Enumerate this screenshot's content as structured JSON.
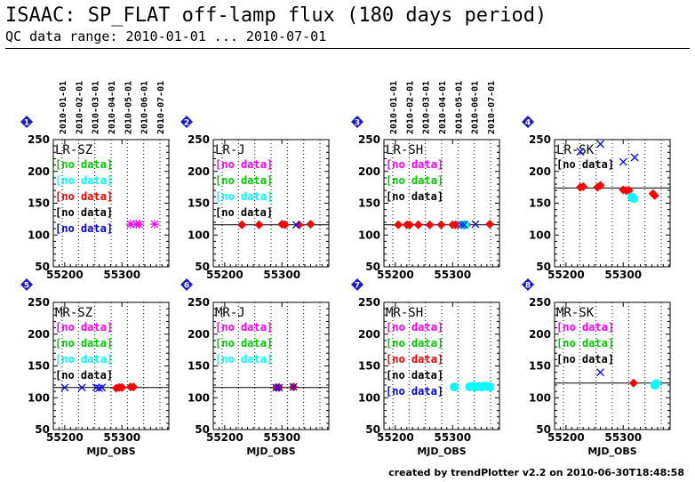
{
  "header": {
    "title": "ISAAC: SP_FLAT off-lamp flux (180 days period)",
    "subtitle": "QC data range: 2010-01-01 ... 2010-07-01"
  },
  "footer": {
    "credit": "created by trendPlotter v2.2 on 2010-06-30T18:48:58"
  },
  "colors": {
    "magenta": "#ff00ff",
    "green": "#00cc00",
    "cyan": "#00ffff",
    "red": "#ff0000",
    "black": "#000000",
    "blue": "#0000ff",
    "badge": "#1a1acc"
  },
  "chart_data": [
    {
      "id": 1,
      "type": "scatter",
      "label": "LR-SZ",
      "xlabel": "",
      "ylim": [
        50,
        250
      ],
      "xlim": [
        55180,
        55382
      ],
      "xticks": [
        55200,
        55300
      ],
      "yticks": [
        50,
        100,
        150,
        200,
        250
      ],
      "date_ticks": [
        "2010-01-01",
        "2010-02-01",
        "2010-03-01",
        "2010-04-01",
        "2010-05-01",
        "2010-06-01",
        "2010-07-01"
      ],
      "legend": [
        {
          "text": "[no data]",
          "color": "#00cc00"
        },
        {
          "text": "[no data]",
          "color": "#00ffff"
        },
        {
          "text": "[no data]",
          "color": "#ff0000"
        },
        {
          "text": "[no data]",
          "color": "#000000"
        },
        {
          "text": "[no data]",
          "color": "#0000ff"
        }
      ],
      "ref_line": null,
      "series": [
        {
          "color": "#ff00ff",
          "marker": "star",
          "x": [
            55315,
            55325,
            55330,
            55357
          ],
          "y": [
            117,
            117,
            117,
            117
          ]
        }
      ]
    },
    {
      "id": 2,
      "type": "scatter",
      "label": "LR-J",
      "xlabel": "",
      "ylim": [
        50,
        250
      ],
      "xlim": [
        55180,
        55382
      ],
      "xticks": [
        55200,
        55300
      ],
      "yticks": [
        50,
        100,
        150,
        200,
        250
      ],
      "date_ticks": [],
      "legend": [
        {
          "text": "[no data]",
          "color": "#ff00ff"
        },
        {
          "text": "[no data]",
          "color": "#00cc00"
        },
        {
          "text": "[no data]",
          "color": "#00ffff"
        },
        {
          "text": "[no data]",
          "color": "#000000"
        }
      ],
      "ref_line": 116,
      "series": [
        {
          "color": "#ff0000",
          "marker": "diamond",
          "x": [
            55230,
            55260,
            55300,
            55305,
            55330,
            55350
          ],
          "y": [
            116,
            116,
            117,
            116,
            116,
            117
          ]
        },
        {
          "color": "#0000ff",
          "marker": "x",
          "x": [
            55325
          ],
          "y": [
            116
          ]
        }
      ]
    },
    {
      "id": 3,
      "type": "scatter",
      "label": "LR-SH",
      "xlabel": "",
      "ylim": [
        50,
        250
      ],
      "xlim": [
        55180,
        55382
      ],
      "xticks": [
        55200,
        55300
      ],
      "yticks": [
        50,
        100,
        150,
        200,
        250
      ],
      "date_ticks": [
        "2010-01-01",
        "2010-02-01",
        "2010-03-01",
        "2010-04-01",
        "2010-05-01",
        "2010-06-01",
        "2010-07-01"
      ],
      "legend": [
        {
          "text": "[no data]",
          "color": "#ff00ff"
        },
        {
          "text": "[no data]",
          "color": "#00cc00"
        },
        {
          "text": "[no data]",
          "color": "#000000"
        }
      ],
      "ref_line": 116,
      "series": [
        {
          "color": "#ff0000",
          "marker": "diamond",
          "x": [
            55205,
            55220,
            55225,
            55240,
            55260,
            55280,
            55300,
            55305,
            55325,
            55365
          ],
          "y": [
            116,
            116,
            116,
            116,
            116,
            116,
            116,
            116,
            116,
            117
          ]
        },
        {
          "color": "#00ffff",
          "marker": "circle",
          "x": [
            55318,
            55322
          ],
          "y": [
            116,
            116
          ]
        },
        {
          "color": "#0000ff",
          "marker": "x",
          "x": [
            55315,
            55320,
            55340
          ],
          "y": [
            116,
            116,
            117
          ]
        }
      ]
    },
    {
      "id": 4,
      "type": "scatter",
      "label": "LR-SK",
      "xlabel": "",
      "ylim": [
        50,
        250
      ],
      "xlim": [
        55180,
        55382
      ],
      "xticks": [
        55200,
        55300
      ],
      "yticks": [
        50,
        100,
        150,
        200,
        250
      ],
      "date_ticks": [],
      "legend": [
        {
          "text": "[no data]",
          "color": "#000000"
        }
      ],
      "ref_line": 174,
      "series": [
        {
          "color": "#ff0000",
          "marker": "diamond",
          "x": [
            55225,
            55230,
            55255,
            55260,
            55300,
            55305,
            55310,
            55352,
            55355
          ],
          "y": [
            175,
            176,
            175,
            178,
            171,
            170,
            170,
            165,
            162
          ]
        },
        {
          "color": "#00ffff",
          "marker": "circle",
          "x": [
            55315,
            55318
          ],
          "y": [
            160,
            157
          ]
        },
        {
          "color": "#0000ff",
          "marker": "x",
          "x": [
            55225,
            55260,
            55300,
            55320
          ],
          "y": [
            231,
            243,
            215,
            222
          ]
        }
      ]
    },
    {
      "id": 5,
      "type": "scatter",
      "label": "MR-SZ",
      "xlabel": "MJD_OBS",
      "ylim": [
        50,
        250
      ],
      "xlim": [
        55180,
        55382
      ],
      "xticks": [
        55200,
        55300
      ],
      "yticks": [
        50,
        100,
        150,
        200,
        250
      ],
      "date_ticks": [],
      "legend": [
        {
          "text": "[no data]",
          "color": "#ff00ff"
        },
        {
          "text": "[no data]",
          "color": "#00cc00"
        },
        {
          "text": "[no data]",
          "color": "#00ffff"
        },
        {
          "text": "[no data]",
          "color": "#000000"
        }
      ],
      "ref_line": 116,
      "series": [
        {
          "color": "#0000ff",
          "marker": "x",
          "x": [
            55200,
            55230,
            55255,
            55260,
            55265
          ],
          "y": [
            116,
            116,
            116,
            115,
            116
          ]
        },
        {
          "color": "#ff0000",
          "marker": "diamond",
          "x": [
            55290,
            55295,
            55300,
            55315,
            55320
          ],
          "y": [
            115,
            116,
            116,
            117,
            117
          ]
        }
      ]
    },
    {
      "id": 6,
      "type": "scatter",
      "label": "MR-J",
      "xlabel": "MJD_OBS",
      "ylim": [
        50,
        250
      ],
      "xlim": [
        55180,
        55382
      ],
      "xticks": [
        55200,
        55300
      ],
      "yticks": [
        50,
        100,
        150,
        200,
        250
      ],
      "date_ticks": [],
      "legend": [
        {
          "text": "[no data]",
          "color": "#ff00ff"
        },
        {
          "text": "[no data]",
          "color": "#00cc00"
        },
        {
          "text": "[no data]",
          "color": "#00ffff"
        }
      ],
      "ref_line": 116,
      "series": [
        {
          "color": "#ff0000",
          "marker": "diamond",
          "x": [
            55290,
            55295,
            55320
          ],
          "y": [
            116,
            116,
            117
          ]
        },
        {
          "color": "#0000ff",
          "marker": "x",
          "x": [
            55290,
            55295,
            55320
          ],
          "y": [
            116,
            116,
            117
          ]
        }
      ]
    },
    {
      "id": 7,
      "type": "scatter",
      "label": "MR-SH",
      "xlabel": "MJD_OBS",
      "ylim": [
        50,
        250
      ],
      "xlim": [
        55180,
        55382
      ],
      "xticks": [
        55200,
        55300
      ],
      "yticks": [
        50,
        100,
        150,
        200,
        250
      ],
      "date_ticks": [],
      "legend": [
        {
          "text": "[no data]",
          "color": "#ff00ff"
        },
        {
          "text": "[no data]",
          "color": "#00cc00"
        },
        {
          "text": "[no data]",
          "color": "#ff0000"
        },
        {
          "text": "[no data]",
          "color": "#000000"
        },
        {
          "text": "[no data]",
          "color": "#0000ff"
        }
      ],
      "ref_line": null,
      "series": [
        {
          "color": "#00ffff",
          "marker": "circle",
          "x": [
            55303,
            55330,
            55335,
            55340,
            55345,
            55350,
            55355,
            55360,
            55365
          ],
          "y": [
            117,
            117,
            118,
            117,
            118,
            117,
            118,
            118,
            117
          ]
        }
      ]
    },
    {
      "id": 8,
      "type": "scatter",
      "label": "MR-SK",
      "xlabel": "MJD_OBS",
      "ylim": [
        50,
        250
      ],
      "xlim": [
        55180,
        55382
      ],
      "xticks": [
        55200,
        55300
      ],
      "yticks": [
        50,
        100,
        150,
        200,
        250
      ],
      "date_ticks": [],
      "legend": [
        {
          "text": "[no data]",
          "color": "#ff00ff"
        },
        {
          "text": "[no data]",
          "color": "#00cc00"
        },
        {
          "text": "[no data]",
          "color": "#000000"
        }
      ],
      "ref_line": 123,
      "series": [
        {
          "color": "#0000ff",
          "marker": "x",
          "x": [
            55260
          ],
          "y": [
            140
          ]
        },
        {
          "color": "#ff0000",
          "marker": "diamond",
          "x": [
            55318
          ],
          "y": [
            123
          ]
        },
        {
          "color": "#00ffff",
          "marker": "circle",
          "x": [
            55355,
            55357
          ],
          "y": [
            120,
            122
          ]
        }
      ]
    }
  ]
}
